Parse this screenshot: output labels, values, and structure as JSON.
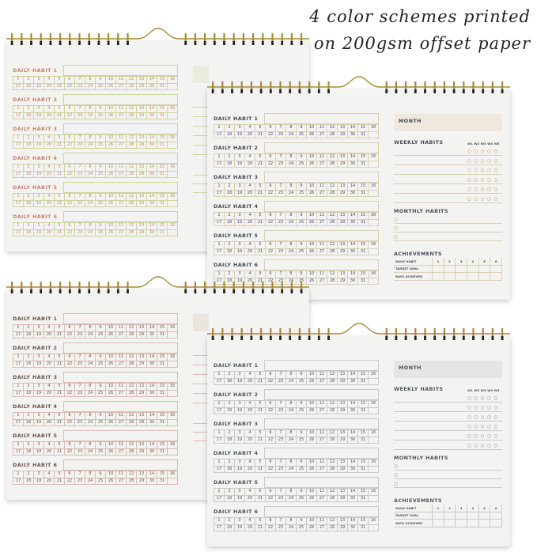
{
  "headline": {
    "line1": "4 color schemes printed",
    "line2": "on 200gsm offset paper"
  },
  "card": {
    "daily_habits": [
      "DAILY HABIT 1",
      "DAILY HABIT 2",
      "DAILY HABIT 3",
      "DAILY HABIT 4",
      "DAILY HABIT 5",
      "DAILY HABIT 6"
    ],
    "days": [
      "1",
      "2",
      "3",
      "4",
      "5",
      "6",
      "7",
      "8",
      "9",
      "10",
      "11",
      "12",
      "13",
      "14",
      "15",
      "16",
      "17",
      "18",
      "19",
      "20",
      "21",
      "22",
      "23",
      "24",
      "25",
      "26",
      "27",
      "28",
      "29",
      "30",
      "31"
    ],
    "month_label": "MONTH",
    "weekly_label": "WEEKLY HABITS",
    "weeks": [
      "W1",
      "W2",
      "W3",
      "W4",
      "W5"
    ],
    "monthly_label": "MONTHLY HABITS",
    "achievements_label": "ACHIEVEMENTS",
    "achievement_rows": [
      "DAILY HABIT",
      "TARGET GOAL",
      "DAYS ACHIEVED"
    ],
    "achievement_cols": [
      "1",
      "2",
      "3",
      "4",
      "5",
      "6"
    ]
  },
  "color_schemes": [
    {
      "name": "sage-coral",
      "text": "#c9866a",
      "line": "#cdd5a0",
      "fill": "#e9ecdb"
    },
    {
      "name": "navy-tan",
      "text": "#464b58",
      "line": "#dccfb6",
      "fill": "#eee8df"
    },
    {
      "name": "brown-blush",
      "text": "#6e524a",
      "line": "#dcbdb3",
      "fill": "#ebe5df"
    },
    {
      "name": "gray",
      "text": "#50545a",
      "line": "#c9c9c9",
      "fill": "#e5e5e3"
    }
  ],
  "spiral_color": "#a8883a"
}
